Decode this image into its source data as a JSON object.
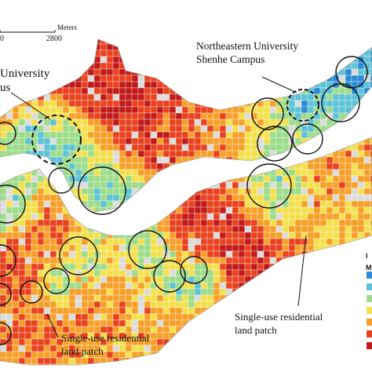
{
  "scale": {
    "unit": "Meters",
    "ticks": [
      "0",
      "2800"
    ]
  },
  "labels": {
    "neu_line1": "Northeastern University",
    "neu_line2": "Shenhe Campus",
    "left_univ_line1": "University",
    "left_univ_line2": "us",
    "single_use_1_line1": "Single-use  residential",
    "single_use_1_line2": "land patch",
    "single_use_2_line1": "Single-use  residential",
    "single_use_2_line2": "land patch"
  },
  "legend": {
    "title_fragment": "I",
    "subtitle_fragment": "M",
    "colors": [
      "#2b8bd6",
      "#5ec3d6",
      "#9ddc8a",
      "#f4e04d",
      "#f6a02a",
      "#e8421e",
      "#c21a1a"
    ]
  },
  "palette": {
    "blue": "#2b8bd6",
    "cyan": "#5ec3d6",
    "green": "#9ddc8a",
    "yellow": "#f4e04d",
    "orange": "#f6a02a",
    "red": "#e8421e",
    "darkred": "#c21a1a",
    "river": "#ffffff",
    "background_land": "#dcdcdc"
  }
}
